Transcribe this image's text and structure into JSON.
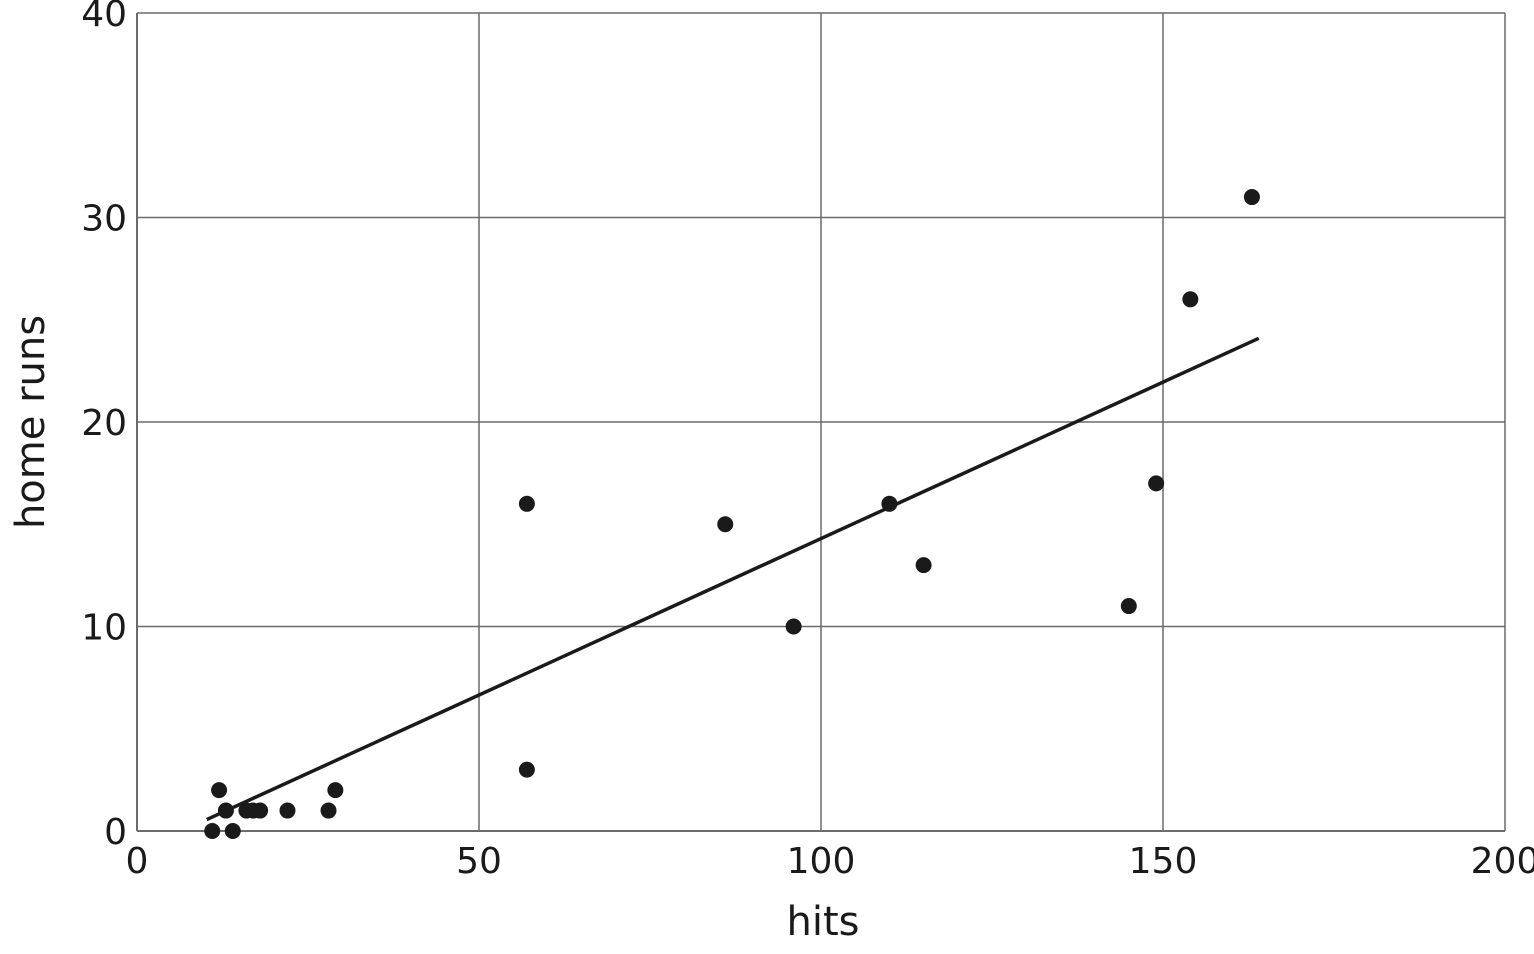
{
  "chart_data": {
    "type": "scatter",
    "title": "",
    "xlabel": "hits",
    "ylabel": "home runs",
    "xlim": [
      0,
      200
    ],
    "ylim": [
      0,
      40
    ],
    "xticks": [
      0,
      50,
      100,
      150,
      200
    ],
    "yticks": [
      0,
      10,
      20,
      30,
      40
    ],
    "xtick_labels": [
      "0",
      "50",
      "100",
      "150",
      "200"
    ],
    "ytick_labels": [
      "0",
      "10",
      "20",
      "30",
      "40"
    ],
    "grid": true,
    "points": [
      {
        "x": 11,
        "y": 0
      },
      {
        "x": 12,
        "y": 2
      },
      {
        "x": 13,
        "y": 1
      },
      {
        "x": 14,
        "y": 0
      },
      {
        "x": 16,
        "y": 1
      },
      {
        "x": 17,
        "y": 1
      },
      {
        "x": 18,
        "y": 1
      },
      {
        "x": 22,
        "y": 1
      },
      {
        "x": 28,
        "y": 1
      },
      {
        "x": 29,
        "y": 2
      },
      {
        "x": 57,
        "y": 16
      },
      {
        "x": 57,
        "y": 3
      },
      {
        "x": 86,
        "y": 15
      },
      {
        "x": 96,
        "y": 10
      },
      {
        "x": 110,
        "y": 16
      },
      {
        "x": 115,
        "y": 13
      },
      {
        "x": 145,
        "y": 11
      },
      {
        "x": 149,
        "y": 17
      },
      {
        "x": 154,
        "y": 26
      },
      {
        "x": 163,
        "y": 31
      }
    ],
    "trend_line": {
      "x_start": 10.2,
      "x_end": 164,
      "slope": 0.153,
      "intercept": -1.0
    },
    "colors": {
      "points": "#1a1a1a",
      "grid": "#6b6b6b",
      "line": "#1a1a1a"
    }
  }
}
